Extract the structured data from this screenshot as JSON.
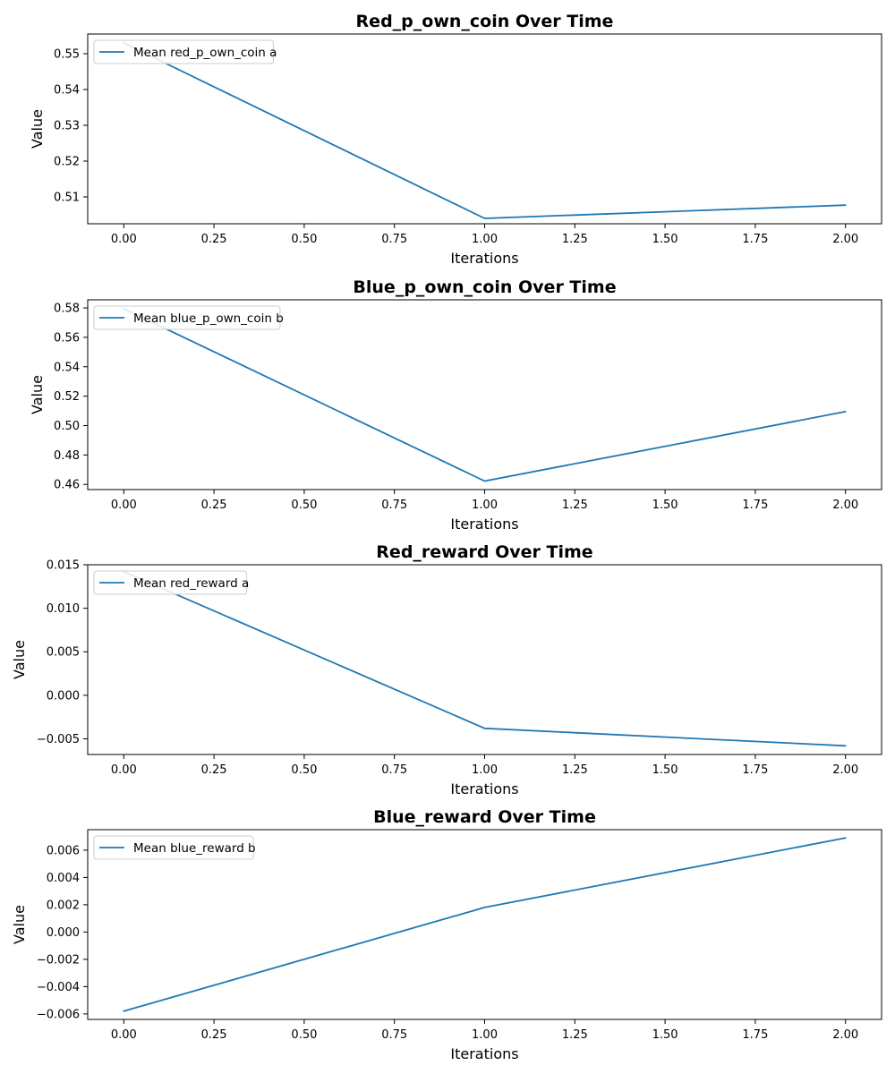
{
  "chart_data": [
    {
      "type": "line",
      "title": "Red_p_own_coin Over Time",
      "xlabel": "Iterations",
      "ylabel": "Value",
      "x": [
        0,
        1,
        2
      ],
      "xlim": [
        -0.1,
        2.1
      ],
      "ylim": [
        0.5025,
        0.5555
      ],
      "xticks": [
        0,
        0.25,
        0.5,
        0.75,
        1,
        1.25,
        1.5,
        1.75,
        2
      ],
      "xtick_labels": [
        "0.00",
        "0.25",
        "0.50",
        "0.75",
        "1.00",
        "1.25",
        "1.50",
        "1.75",
        "2.00"
      ],
      "yticks": [
        0.51,
        0.52,
        0.53,
        0.54,
        0.55
      ],
      "ytick_labels": [
        "0.51",
        "0.52",
        "0.53",
        "0.54",
        "0.55"
      ],
      "series": [
        {
          "name": "Mean red_p_own_coin a",
          "values": [
            0.553,
            0.504,
            0.5077
          ],
          "color": "#1f77b4"
        }
      ],
      "legend": "upper-left",
      "grid": false
    },
    {
      "type": "line",
      "title": "Blue_p_own_coin Over Time",
      "xlabel": "Iterations",
      "ylabel": "Value",
      "x": [
        0,
        1,
        2
      ],
      "xlim": [
        -0.1,
        2.1
      ],
      "ylim": [
        0.4565,
        0.5855
      ],
      "xticks": [
        0,
        0.25,
        0.5,
        0.75,
        1,
        1.25,
        1.5,
        1.75,
        2
      ],
      "xtick_labels": [
        "0.00",
        "0.25",
        "0.50",
        "0.75",
        "1.00",
        "1.25",
        "1.50",
        "1.75",
        "2.00"
      ],
      "yticks": [
        0.46,
        0.48,
        0.5,
        0.52,
        0.54,
        0.56,
        0.58
      ],
      "ytick_labels": [
        "0.46",
        "0.48",
        "0.50",
        "0.52",
        "0.54",
        "0.56",
        "0.58"
      ],
      "series": [
        {
          "name": "Mean blue_p_own_coin b",
          "values": [
            0.5795,
            0.4623,
            0.5095
          ],
          "color": "#1f77b4"
        }
      ],
      "legend": "upper-left",
      "grid": false
    },
    {
      "type": "line",
      "title": "Red_reward Over Time",
      "xlabel": "Iterations",
      "ylabel": "Value",
      "x": [
        0,
        1,
        2
      ],
      "xlim": [
        -0.1,
        2.1
      ],
      "ylim": [
        -0.0068,
        0.015
      ],
      "xticks": [
        0,
        0.25,
        0.5,
        0.75,
        1,
        1.25,
        1.5,
        1.75,
        2
      ],
      "xtick_labels": [
        "0.00",
        "0.25",
        "0.50",
        "0.75",
        "1.00",
        "1.25",
        "1.50",
        "1.75",
        "2.00"
      ],
      "yticks": [
        -0.005,
        0,
        0.005,
        0.01,
        0.015
      ],
      "ytick_labels": [
        "−0.005",
        "0.000",
        "0.005",
        "0.010",
        "0.015"
      ],
      "series": [
        {
          "name": "Mean red_reward a",
          "values": [
            0.0142,
            -0.0038,
            -0.0058
          ],
          "color": "#1f77b4"
        }
      ],
      "legend": "upper-left",
      "grid": false
    },
    {
      "type": "line",
      "title": "Blue_reward Over Time",
      "xlabel": "Iterations",
      "ylabel": "Value",
      "x": [
        0,
        1,
        2
      ],
      "xlim": [
        -0.1,
        2.1
      ],
      "ylim": [
        -0.0064,
        0.0075
      ],
      "xticks": [
        0,
        0.25,
        0.5,
        0.75,
        1,
        1.25,
        1.5,
        1.75,
        2
      ],
      "xtick_labels": [
        "0.00",
        "0.25",
        "0.50",
        "0.75",
        "1.00",
        "1.25",
        "1.50",
        "1.75",
        "2.00"
      ],
      "yticks": [
        -0.006,
        -0.004,
        -0.002,
        0,
        0.002,
        0.004,
        0.006
      ],
      "ytick_labels": [
        "−0.006",
        "−0.004",
        "−0.002",
        "0.000",
        "0.002",
        "0.004",
        "0.006"
      ],
      "series": [
        {
          "name": "Mean blue_reward b",
          "values": [
            -0.0058,
            0.0018,
            0.0069
          ],
          "color": "#1f77b4"
        }
      ],
      "legend": "upper-left",
      "grid": false
    }
  ]
}
